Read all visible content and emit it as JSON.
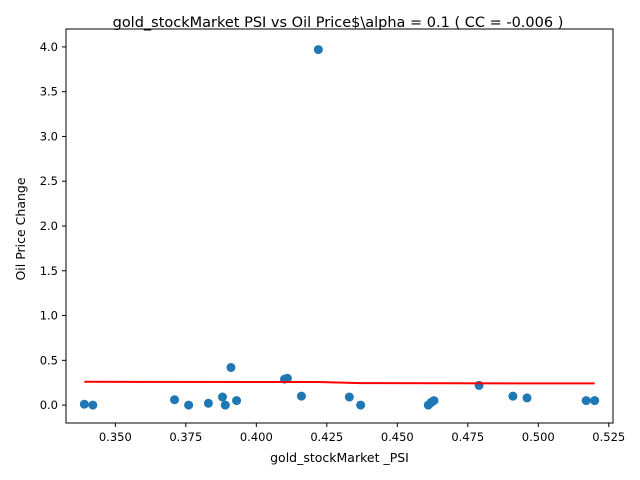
{
  "chart_data": {
    "type": "scatter",
    "title": "gold_stockMarket  PSI vs Oil Price$\\alpha = 0.1 ( CC = -0.006 )",
    "xlabel": "gold_stockMarket _PSI",
    "ylabel": "Oil Price Change",
    "xlim": [
      0.3325,
      0.5265
    ],
    "ylim": [
      -0.2,
      4.2
    ],
    "xticks": [
      0.35,
      0.375,
      0.4,
      0.425,
      0.45,
      0.475,
      0.5,
      0.525
    ],
    "xtick_labels": [
      "0.350",
      "0.375",
      "0.400",
      "0.425",
      "0.450",
      "0.475",
      "0.500",
      "0.525"
    ],
    "yticks": [
      0.0,
      0.5,
      1.0,
      1.5,
      2.0,
      2.5,
      3.0,
      3.5,
      4.0
    ],
    "ytick_labels": [
      "0.0",
      "0.5",
      "1.0",
      "1.5",
      "2.0",
      "2.5",
      "3.0",
      "3.5",
      "4.0"
    ],
    "grid": false,
    "colors": {
      "points": "#1f77b4",
      "fit_line": "#ff0000"
    },
    "series": [
      {
        "type": "scatter",
        "x": [
          0.339,
          0.342,
          0.371,
          0.376,
          0.383,
          0.388,
          0.389,
          0.391,
          0.393,
          0.41,
          0.411,
          0.416,
          0.422,
          0.433,
          0.437,
          0.461,
          0.462,
          0.463,
          0.479,
          0.491,
          0.496,
          0.517,
          0.52
        ],
        "y": [
          0.01,
          0.0,
          0.06,
          0.0,
          0.02,
          0.09,
          0.0,
          0.42,
          0.05,
          0.29,
          0.3,
          0.1,
          3.97,
          0.09,
          0.0,
          0.0,
          0.03,
          0.05,
          0.22,
          0.1,
          0.08,
          0.05,
          0.05
        ]
      },
      {
        "type": "line",
        "x": [
          0.339,
          0.422,
          0.437,
          0.52
        ],
        "y": [
          0.26,
          0.258,
          0.245,
          0.242
        ]
      }
    ]
  }
}
